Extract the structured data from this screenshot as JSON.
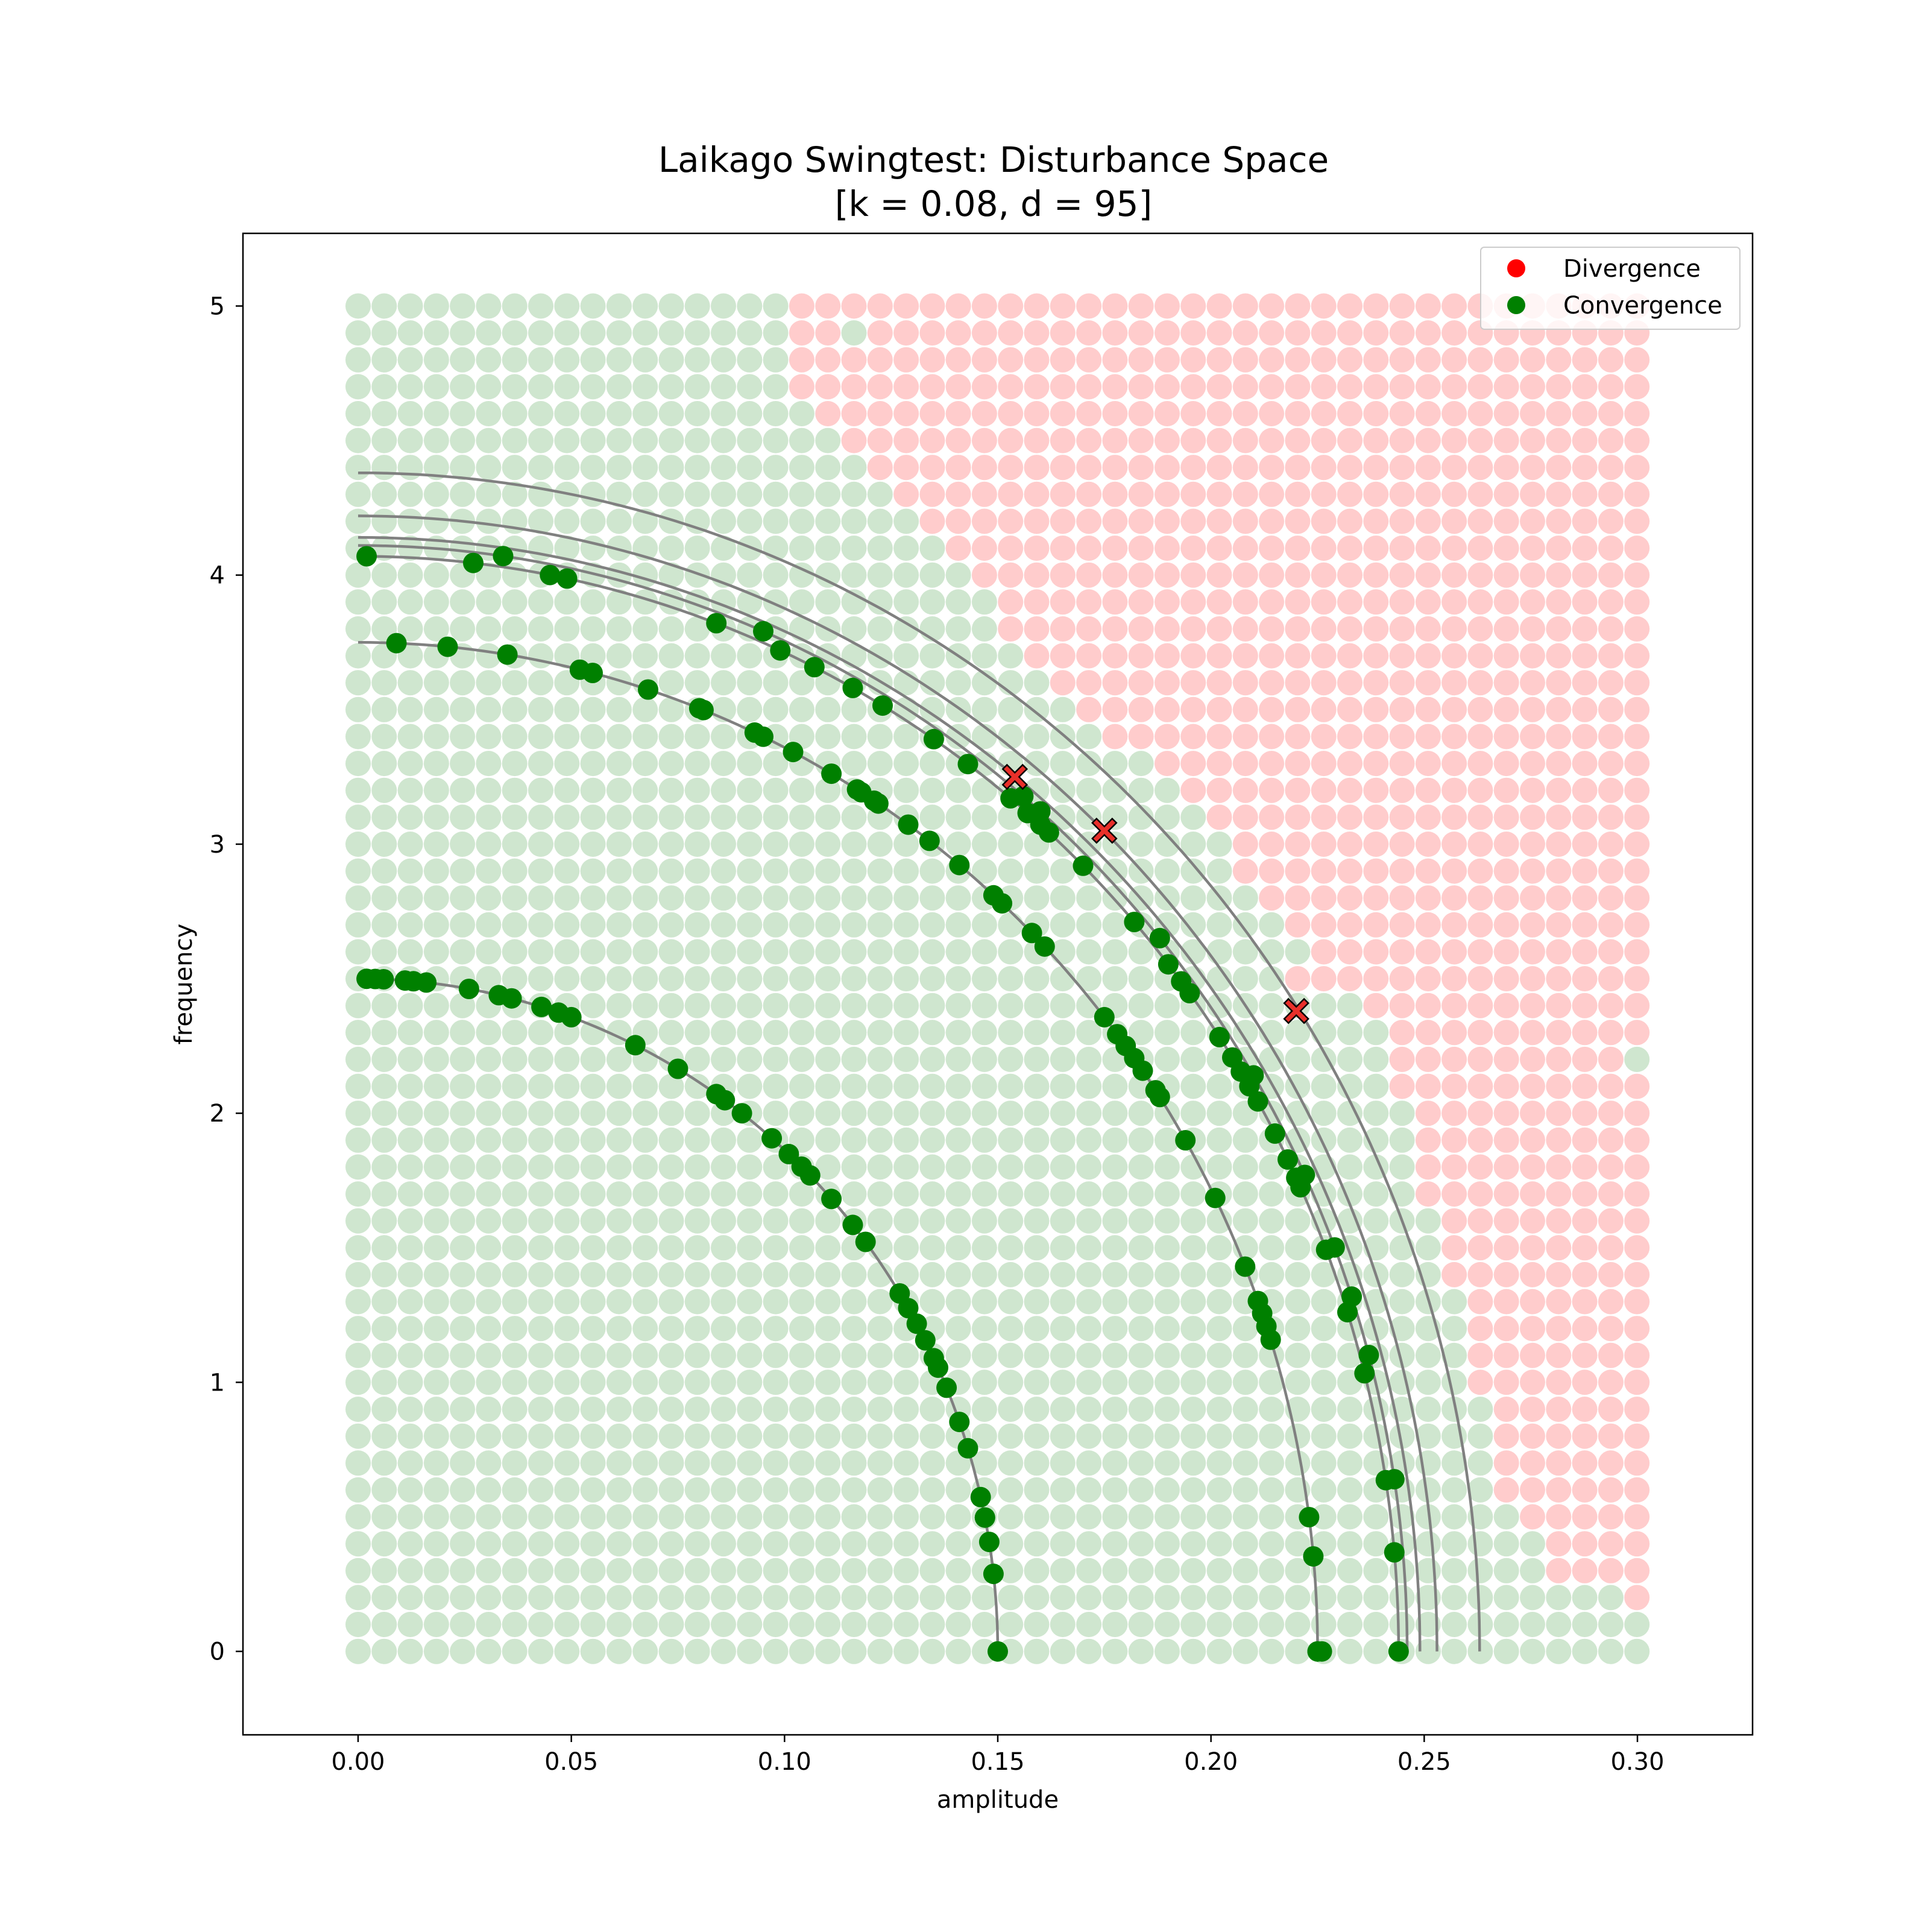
{
  "chart_data": {
    "type": "scatter",
    "title": "Laikago Swingtest: Disturbance Space",
    "subtitle": "[k = 0.08, d = 95]",
    "xlabel": "amplitude",
    "ylabel": "frequency",
    "xlim": [
      -0.027,
      0.327
    ],
    "ylim": [
      -0.31,
      5.27
    ],
    "xticks": [
      0.0,
      0.05,
      0.1,
      0.15,
      0.2,
      0.25,
      0.3
    ],
    "xtick_labels": [
      "0.00",
      "0.05",
      "0.10",
      "0.15",
      "0.20",
      "0.25",
      "0.30"
    ],
    "yticks": [
      0,
      1,
      2,
      3,
      4,
      5
    ],
    "ytick_labels": [
      "0",
      "1",
      "2",
      "3",
      "4",
      "5"
    ],
    "grid": false,
    "legend_position": "top-right",
    "legend": [
      {
        "label": "Divergence",
        "color": "#ff0000"
      },
      {
        "label": "Convergence",
        "color": "#008000"
      }
    ],
    "background_grid": {
      "x_start": 0.0,
      "x_step": 0.00612,
      "x_count": 50,
      "y_start": 0.0,
      "y_step": 0.1,
      "y_count": 51,
      "divergence_color": "#ffcccc",
      "convergence_color": "#cfe6cf",
      "boundary_freq": [
        0,
        1,
        2,
        3,
        4,
        5,
        6,
        7,
        8,
        9,
        10,
        11,
        12,
        13,
        14,
        15,
        16,
        17,
        18,
        19,
        20,
        21,
        22,
        23,
        24,
        25,
        26,
        27,
        28,
        29,
        30,
        31,
        32,
        33,
        34,
        35,
        36,
        37,
        38,
        39,
        40,
        41,
        42,
        43,
        44,
        45,
        46,
        47,
        48,
        49,
        50
      ],
      "boundary_amp": [
        null,
        null,
        0.298,
        0.28,
        0.28,
        0.274,
        0.268,
        0.268,
        0.268,
        0.268,
        0.262,
        0.262,
        0.262,
        0.262,
        0.256,
        0.256,
        0.256,
        0.25,
        0.25,
        0.25,
        0.25,
        0.244,
        0.244,
        0.244,
        0.238,
        0.22,
        0.226,
        0.22,
        0.214,
        0.208,
        0.202,
        0.196,
        0.19,
        0.184,
        0.177,
        0.171,
        0.165,
        0.159,
        0.153,
        0.147,
        0.141,
        0.135,
        0.129,
        0.123,
        0.117,
        0.116,
        0.11,
        0.104,
        0.104,
        0.098,
        0.098
      ],
      "exceptions": [
        {
          "x": 0.116,
          "y": 4.9,
          "state": "convergence"
        },
        {
          "x": 0.3,
          "y": 2.2,
          "state": "convergence"
        }
      ]
    },
    "trajectory_curves": [
      {
        "a0": 0.15,
        "f0": 2.5
      },
      {
        "a0": 0.225,
        "f0": 3.75
      },
      {
        "a0": 0.244,
        "f0": 4.07
      },
      {
        "a0": 0.246,
        "f0": 4.11
      },
      {
        "a0": 0.249,
        "f0": 4.14
      },
      {
        "a0": 0.253,
        "f0": 4.22
      },
      {
        "a0": 0.263,
        "f0": 4.38
      }
    ],
    "curve_color": "#808080",
    "convergence_points": [
      {
        "curve": 0,
        "x": [
          0.002,
          0.004,
          0.006,
          0.011,
          0.013,
          0.016,
          0.026,
          0.033,
          0.036,
          0.043,
          0.047,
          0.05,
          0.065,
          0.075,
          0.084,
          0.086,
          0.09,
          0.097,
          0.101,
          0.104,
          0.106,
          0.111,
          0.116,
          0.119,
          0.127,
          0.129,
          0.131,
          0.133,
          0.135,
          0.136,
          0.138,
          0.141,
          0.143,
          0.146,
          0.147,
          0.147,
          0.148,
          0.149,
          0.15
        ]
      },
      {
        "curve": 1,
        "x": [
          0.009,
          0.021,
          0.035,
          0.052,
          0.055,
          0.068,
          0.08,
          0.081,
          0.093,
          0.095,
          0.102,
          0.111,
          0.117,
          0.118,
          0.121,
          0.122,
          0.129,
          0.134,
          0.141,
          0.149,
          0.151,
          0.158,
          0.161,
          0.175,
          0.178,
          0.18,
          0.182,
          0.184,
          0.187,
          0.188,
          0.194,
          0.201,
          0.208,
          0.211,
          0.212,
          0.213,
          0.214,
          0.223,
          0.224,
          0.225,
          0.226,
          0.225
        ]
      },
      {
        "curve": 2,
        "x": [
          0.002,
          0.027,
          0.045,
          0.049,
          0.084,
          0.099,
          0.107,
          0.116,
          0.123,
          0.135,
          0.143,
          0.153,
          0.157,
          0.16,
          0.162,
          0.17,
          0.182,
          0.19,
          0.193,
          0.195,
          0.202,
          0.205,
          0.207,
          0.209,
          0.211,
          0.215,
          0.218,
          0.22,
          0.221,
          0.227,
          0.232,
          0.236,
          0.241,
          0.243,
          0.244
        ]
      },
      {
        "curve": 3,
        "x": [
          0.034,
          0.095,
          0.156,
          0.16,
          0.188,
          0.21,
          0.222,
          0.229,
          0.233,
          0.237,
          0.243
        ]
      }
    ],
    "divergence_points": {
      "x": [
        0.154,
        0.175,
        0.22
      ],
      "y": [
        3.25,
        3.05,
        2.38
      ]
    }
  }
}
